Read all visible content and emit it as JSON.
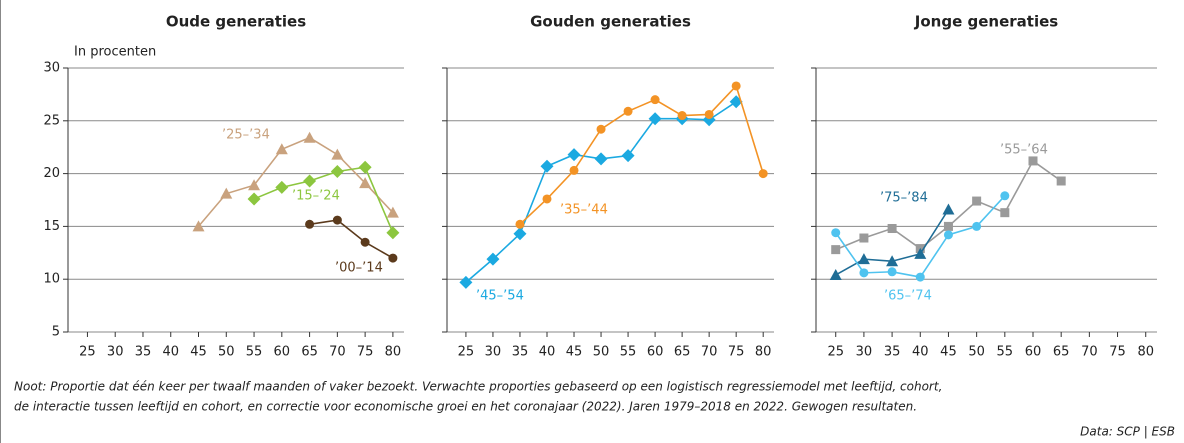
{
  "chart_data": [
    {
      "type": "line",
      "title": "Oude generaties",
      "ylabel": "In procenten",
      "show_ytick_labels": true,
      "xlim": [
        21.5,
        82
      ],
      "xticks": [
        25,
        30,
        35,
        40,
        45,
        50,
        55,
        60,
        65,
        70,
        75,
        80
      ],
      "ylim": [
        5,
        30
      ],
      "yticks": [
        5,
        10,
        15,
        20,
        25,
        30
      ],
      "grid": true,
      "series": [
        {
          "name": "’25–’34",
          "color": "#c9a27e",
          "marker": "triangle",
          "x": [
            45,
            50,
            55,
            60,
            65,
            70,
            75,
            80
          ],
          "values": [
            15.0,
            18.1,
            18.9,
            22.3,
            23.4,
            21.8,
            19.1,
            16.3
          ]
        },
        {
          "name": "’15–’24",
          "color": "#8cc63f",
          "marker": "diamond",
          "x": [
            55,
            60,
            65,
            70,
            75,
            80
          ],
          "values": [
            17.6,
            18.7,
            19.3,
            20.2,
            20.6,
            14.4
          ]
        },
        {
          "name": "’00–’14",
          "color": "#5b3a1c",
          "marker": "circle",
          "x": [
            65,
            70,
            75,
            80
          ],
          "values": [
            15.2,
            15.6,
            13.5,
            12.0
          ]
        }
      ]
    },
    {
      "type": "line",
      "title": "Gouden generaties",
      "show_ytick_labels": false,
      "xlim": [
        21.5,
        82
      ],
      "xticks": [
        25,
        30,
        35,
        40,
        45,
        50,
        55,
        60,
        65,
        70,
        75,
        80
      ],
      "ylim": [
        5,
        30
      ],
      "yticks": [
        5,
        10,
        15,
        20,
        25,
        30
      ],
      "grid": true,
      "series": [
        {
          "name": "’45–’54",
          "color": "#1ba9e1",
          "marker": "diamond",
          "x": [
            25,
            30,
            35,
            40,
            45,
            50,
            55,
            60,
            65,
            70,
            75
          ],
          "values": [
            9.7,
            11.9,
            14.3,
            20.7,
            21.8,
            21.4,
            21.7,
            25.2,
            25.2,
            25.1,
            26.8
          ]
        },
        {
          "name": "’35–’44",
          "color": "#f39325",
          "marker": "circle",
          "x": [
            35,
            40,
            45,
            50,
            55,
            60,
            65,
            70,
            75,
            80
          ],
          "values": [
            15.2,
            17.6,
            20.3,
            24.2,
            25.9,
            27.0,
            25.5,
            25.6,
            28.3,
            20.0
          ]
        }
      ]
    },
    {
      "type": "line",
      "title": "Jonge generaties",
      "show_ytick_labels": false,
      "xlim": [
        21.5,
        82
      ],
      "xticks": [
        25,
        30,
        35,
        40,
        45,
        50,
        55,
        60,
        65,
        70,
        75,
        80
      ],
      "ylim": [
        5,
        30
      ],
      "yticks": [
        5,
        10,
        15,
        20,
        25,
        30
      ],
      "grid": true,
      "series": [
        {
          "name": "’55–’64",
          "color": "#9a9a9a",
          "marker": "square",
          "x": [
            25,
            30,
            35,
            40,
            45,
            50,
            55,
            60,
            65
          ],
          "values": [
            12.8,
            13.9,
            14.8,
            12.9,
            15.0,
            17.4,
            16.3,
            21.2,
            19.3
          ]
        },
        {
          "name": "’75–’84",
          "color": "#1f6d96",
          "marker": "triangle",
          "x": [
            25,
            30,
            35,
            40,
            45
          ],
          "values": [
            10.4,
            11.9,
            11.7,
            12.4,
            16.6
          ]
        },
        {
          "name": "’65–’74",
          "color": "#4fc3ef",
          "marker": "circle",
          "x": [
            25,
            30,
            35,
            40,
            45,
            50,
            55
          ],
          "values": [
            14.4,
            10.6,
            10.7,
            10.2,
            14.2,
            15.0,
            17.9
          ]
        }
      ]
    }
  ],
  "note": [
    "Noot: Proportie dat één keer per twaalf maanden of vaker bezoekt. Verwachte proporties gebaseerd op een logistisch regressiemodel met leeftijd, cohort,",
    "de interactie tussen leeftijd en cohort, en correctie voor economische groei en het coronajaar (2022). Jaren 1979–2018 en 2022. Gewogen resultaten."
  ],
  "source": "Data: SCP | ESB"
}
